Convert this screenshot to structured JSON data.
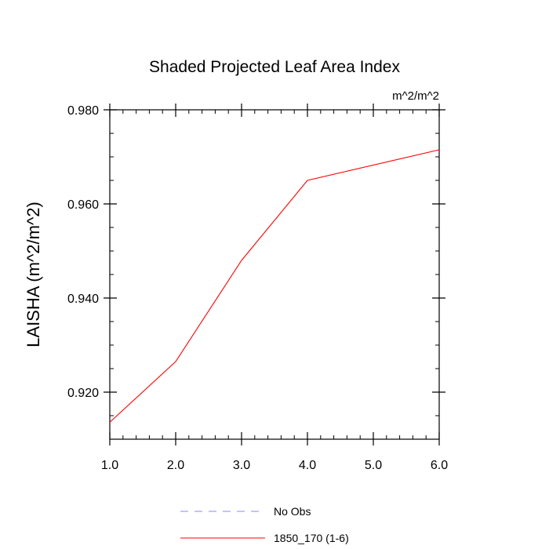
{
  "chart_data": {
    "type": "line",
    "title": "Shaded Projected Leaf Area Index",
    "units_label": "m^2/m^2",
    "ylabel": "LAISHA  (m^2/m^2)",
    "xlabel": "",
    "xlim": [
      1.0,
      6.0
    ],
    "ylim": [
      0.91,
      0.98
    ],
    "x_ticks": [
      1.0,
      2.0,
      3.0,
      4.0,
      5.0,
      6.0
    ],
    "x_tick_labels": [
      "1.0",
      "2.0",
      "3.0",
      "4.0",
      "5.0",
      "6.0"
    ],
    "y_ticks": [
      0.92,
      0.94,
      0.96,
      0.98
    ],
    "y_tick_labels": [
      "0.920",
      "0.940",
      "0.960",
      "0.980"
    ],
    "y_minor_step": 0.005,
    "x_minor_step": 0.2,
    "series": [
      {
        "name": "1850_170 (1-6)",
        "color": "#ff0000",
        "dash": "solid",
        "x": [
          1.0,
          2.0,
          3.0,
          4.0,
          6.0
        ],
        "values": [
          0.9136,
          0.9265,
          0.948,
          0.965,
          0.9715
        ]
      }
    ],
    "legend": [
      {
        "label": "No Obs",
        "color": "#8a8aff",
        "dash": "dashed"
      },
      {
        "label": "1850_170 (1-6)",
        "color": "#ff0000",
        "dash": "solid"
      }
    ],
    "legend_position": "bottom-center"
  }
}
